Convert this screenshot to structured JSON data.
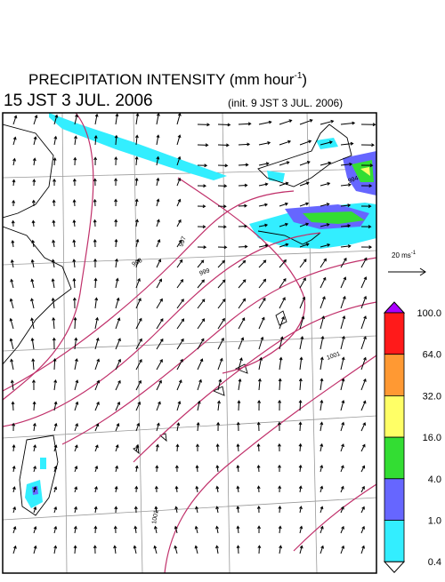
{
  "header": {
    "title": "PRECIPITATION INTENSITY (mm hour",
    "title_sup": "-1",
    "title_end": ")",
    "valid_time": "15 JST 3 JUL. 2006",
    "init_time": "(init. 9 JST 3 JUL. 2006)"
  },
  "wind_scale": {
    "label": "20 ms",
    "label_sup": "-1"
  },
  "colorbar": {
    "labels": [
      "100.0",
      "64.0",
      "32.0",
      "16.0",
      "4.0",
      "1.0",
      "0.4"
    ],
    "colors": [
      "#ff1a1a",
      "#ff9933",
      "#ffff66",
      "#33dd33",
      "#6666ff",
      "#33eeff"
    ],
    "over_color": "#aa00ff",
    "under_color": "#ffffff"
  },
  "contour_labels": [
    "994",
    "997",
    "998",
    "999",
    "1001",
    "1001"
  ]
}
